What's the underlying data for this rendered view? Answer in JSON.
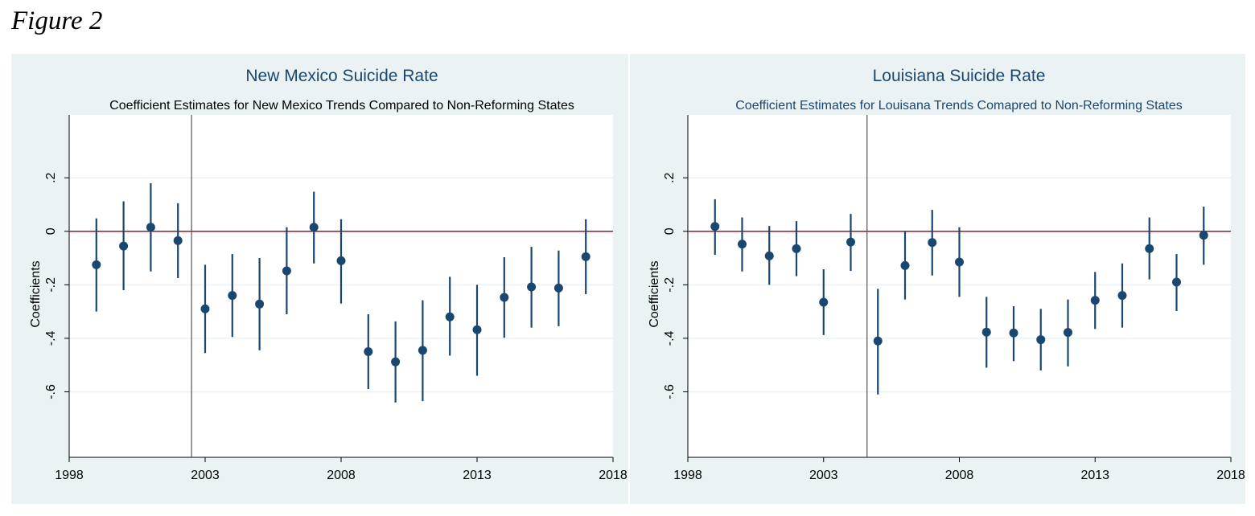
{
  "figure_label": "Figure 2",
  "colors": {
    "outer_bg": "#eaf2f3",
    "plot_bg": "#ffffff",
    "marker": "#1a476f",
    "zero_line": "#a32638",
    "grid": "#eaf2f3",
    "vline": "#555555",
    "title": "#1a476f",
    "subtitle_left": "#000000",
    "subtitle_right": "#1a476f"
  },
  "chart_data": [
    {
      "type": "scatter",
      "title": "New Mexico Suicide Rate",
      "subtitle": "Coefficient Estimates for New Mexico Trends Compared to Non-Reforming States",
      "ylabel": "Coefficients",
      "xlabel": "",
      "xlim": [
        1998,
        2018
      ],
      "ylim": [
        -0.845,
        0.435
      ],
      "xticks": [
        1998,
        2003,
        2008,
        2013,
        2018
      ],
      "yticks": [
        0.2,
        0,
        -0.2,
        -0.4,
        -0.6
      ],
      "ytick_labels": [
        ".2",
        "0",
        "-.2",
        "-.4",
        "-.6"
      ],
      "reference_line_y": 0,
      "vertical_line_x": 2002.5,
      "grid": true,
      "series": [
        {
          "x": [
            1999,
            2000,
            2001,
            2002,
            2003,
            2004,
            2005,
            2006,
            2007,
            2008,
            2009,
            2010,
            2011,
            2012,
            2013,
            2014,
            2015,
            2016,
            2017
          ],
          "y": [
            -0.125,
            -0.055,
            0.015,
            -0.035,
            -0.29,
            -0.24,
            -0.272,
            -0.148,
            0.015,
            -0.11,
            -0.45,
            -0.488,
            -0.445,
            -0.32,
            -0.368,
            -0.247,
            -0.208,
            -0.212,
            -0.095
          ],
          "lower": [
            -0.3,
            -0.22,
            -0.15,
            -0.175,
            -0.455,
            -0.395,
            -0.445,
            -0.31,
            -0.12,
            -0.27,
            -0.59,
            -0.64,
            -0.635,
            -0.465,
            -0.54,
            -0.398,
            -0.36,
            -0.355,
            -0.235
          ],
          "upper": [
            0.048,
            0.112,
            0.18,
            0.105,
            -0.125,
            -0.085,
            -0.1,
            0.015,
            0.148,
            0.045,
            -0.31,
            -0.337,
            -0.258,
            -0.17,
            -0.2,
            -0.097,
            -0.058,
            -0.072,
            0.045
          ]
        }
      ]
    },
    {
      "type": "scatter",
      "title": "Louisiana Suicide Rate",
      "subtitle": "Coefficient Estimates for Louisana Trends Comapred to Non-Reforming States",
      "ylabel": "Coefficients",
      "xlabel": "",
      "xlim": [
        1998,
        2018
      ],
      "ylim": [
        -0.845,
        0.435
      ],
      "xticks": [
        1998,
        2003,
        2008,
        2013,
        2018
      ],
      "yticks": [
        0.2,
        0,
        -0.2,
        -0.4,
        -0.6
      ],
      "ytick_labels": [
        ".2",
        "0",
        "-.2",
        "-.4",
        "-.6"
      ],
      "reference_line_y": 0,
      "vertical_line_x": 2004.6,
      "grid": true,
      "series": [
        {
          "x": [
            1999,
            2000,
            2001,
            2002,
            2003,
            2004,
            2005,
            2006,
            2007,
            2008,
            2009,
            2010,
            2011,
            2012,
            2013,
            2014,
            2015,
            2016,
            2017
          ],
          "y": [
            0.018,
            -0.048,
            -0.092,
            -0.065,
            -0.265,
            -0.04,
            -0.41,
            -0.128,
            -0.042,
            -0.115,
            -0.377,
            -0.38,
            -0.405,
            -0.378,
            -0.258,
            -0.24,
            -0.065,
            -0.19,
            -0.015
          ],
          "lower": [
            -0.088,
            -0.15,
            -0.2,
            -0.168,
            -0.388,
            -0.148,
            -0.61,
            -0.255,
            -0.165,
            -0.245,
            -0.51,
            -0.485,
            -0.52,
            -0.505,
            -0.365,
            -0.36,
            -0.18,
            -0.298,
            -0.125
          ],
          "upper": [
            0.12,
            0.052,
            0.02,
            0.038,
            -0.142,
            0.065,
            -0.215,
            0.0,
            0.08,
            0.015,
            -0.245,
            -0.28,
            -0.29,
            -0.255,
            -0.152,
            -0.12,
            0.052,
            -0.085,
            0.092
          ]
        }
      ]
    }
  ]
}
